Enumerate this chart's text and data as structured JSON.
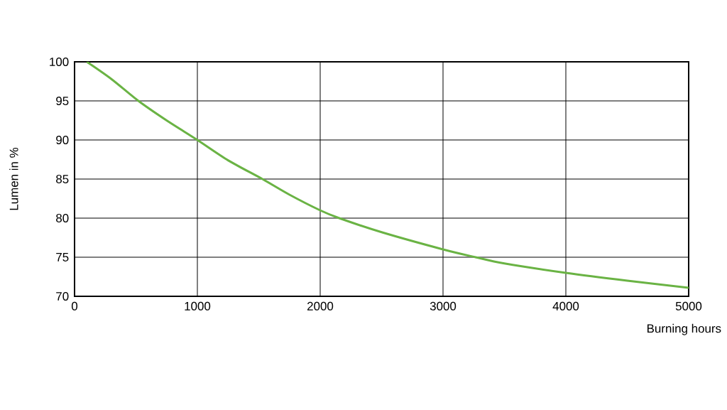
{
  "chart_data": {
    "type": "line",
    "xlabel": "Burning hours",
    "ylabel": "Lumen in %",
    "x": [
      100,
      300,
      520,
      750,
      1000,
      1250,
      1530,
      1750,
      2000,
      2155,
      2500,
      3000,
      3265,
      3500,
      4000,
      4500,
      5000
    ],
    "series": [
      {
        "color": "#6ab344",
        "values": [
          100,
          97.8,
          95,
          92.5,
          90,
          87.4,
          85,
          83,
          81,
          80,
          78.2,
          76,
          75,
          74.2,
          73,
          72,
          71.1
        ]
      }
    ],
    "xlim": [
      0,
      5000
    ],
    "ylim": [
      70,
      100
    ],
    "xticks": [
      0,
      1000,
      2000,
      3000,
      4000,
      5000
    ],
    "yticks": [
      70,
      75,
      80,
      85,
      90,
      95,
      100
    ],
    "grid": true,
    "marker": "none",
    "line_style": "solid"
  }
}
